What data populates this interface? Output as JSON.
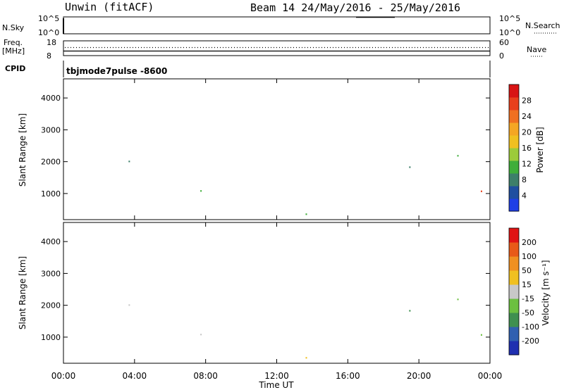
{
  "header": {
    "station": "Unwin (fitACF)",
    "beam_info": "Beam 14 24/May/2016 - 25/May/2016"
  },
  "panels": {
    "nsky": {
      "label": "N.Sky",
      "tick_top": "10^5",
      "tick_bottom": "10^0",
      "right_tick_top": "10^5",
      "right_tick_bottom": "10^0",
      "right_label": "N.Search"
    },
    "freq": {
      "label_line1": "Freq.",
      "label_line2": "[MHz]",
      "tick_top": "18",
      "tick_bottom": "8",
      "right_tick_top": "60",
      "right_tick_bottom": "0",
      "right_label": "Nave"
    },
    "cpid": {
      "label": "CPID",
      "value": "tbjmode7pulse -8600"
    }
  },
  "chart_data": [
    {
      "type": "heatmap",
      "name": "power",
      "ylabel": "Slant Range [km]",
      "yticks": [
        1000,
        2000,
        3000,
        4000
      ],
      "ylim": [
        180,
        4600
      ],
      "xlim_hours": [
        0,
        24
      ],
      "colorbar": {
        "label": "Power [dB]",
        "ticks": [
          "4",
          "8",
          "12",
          "16",
          "20",
          "24",
          "28"
        ],
        "colors": [
          "#1f3fe6",
          "#1f4fa0",
          "#3d7f6a",
          "#3fae3a",
          "#9ccb3a",
          "#f0c020",
          "#f5a623",
          "#f07020",
          "#e8401c",
          "#d81414"
        ]
      }
    },
    {
      "type": "heatmap",
      "name": "velocity",
      "ylabel": "Slant Range [km]",
      "yticks": [
        1000,
        2000,
        3000,
        4000
      ],
      "ylim": [
        180,
        4600
      ],
      "xlim_hours": [
        0,
        24
      ],
      "colorbar": {
        "label": "Velocity [m s⁻¹]",
        "ticks": [
          "200",
          "100",
          "50",
          "15",
          "-15",
          "-50",
          "-100",
          "-200"
        ],
        "colors": [
          "#1f2fb0",
          "#3060b0",
          "#3f9050",
          "#6cc040",
          "#c8c8c8",
          "#f0c020",
          "#f09020",
          "#e85a18",
          "#e01414"
        ]
      }
    }
  ],
  "xaxis": {
    "ticks": [
      "00:00",
      "04:00",
      "08:00",
      "12:00",
      "16:00",
      "20:00",
      "00:00"
    ],
    "label": "Time UT"
  }
}
